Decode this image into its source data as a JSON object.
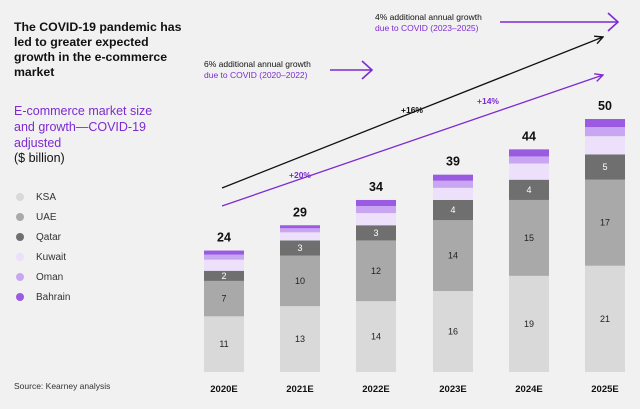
{
  "headline": "The COVID-19 pandemic has led to greater expected growth in the e-commerce market",
  "subtitle": "E-commerce market size and growth—COVID-19 adjusted",
  "units": "($ billion)",
  "source": "Source: Kearney analysis",
  "colors": {
    "accent": "#7d2bd1",
    "KSA": "#d9d9d9",
    "UAE": "#a9a9a9",
    "Qatar": "#6f6f6f",
    "Kuwait": "#ece0fb",
    "Oman": "#c9a6f2",
    "Bahrain": "#9a5ae2"
  },
  "annotations": {
    "growth_2020_2022": {
      "line1": "6% additional annual growth",
      "line2": "due to COVID (2020–2022)"
    },
    "growth_2023_2025": {
      "line1": "4% additional annual growth",
      "line2": "due to COVID (2023–2025)"
    },
    "cagr_black_1": "+16%",
    "cagr_purple_1": "+20%",
    "cagr_purple_2": "+14%"
  },
  "chart_data": {
    "type": "bar",
    "stacked": true,
    "categories": [
      "2020E",
      "2021E",
      "2022E",
      "2023E",
      "2024E",
      "2025E"
    ],
    "totals": [
      24,
      29,
      34,
      39,
      44,
      50
    ],
    "series": [
      {
        "name": "KSA",
        "values": [
          11,
          13,
          14,
          16,
          19,
          21
        ],
        "labels": [
          "11",
          "13",
          "14",
          "16",
          "19",
          "21"
        ]
      },
      {
        "name": "UAE",
        "values": [
          7,
          10,
          12,
          14,
          15,
          17
        ],
        "labels": [
          "7",
          "10",
          "12",
          "14",
          "15",
          "17"
        ]
      },
      {
        "name": "Qatar",
        "values": [
          2,
          3,
          3,
          4,
          4,
          5
        ],
        "labels": [
          "2",
          "3",
          "3",
          "4",
          "4",
          "5"
        ]
      },
      {
        "name": "Kuwait",
        "values": [
          2.2,
          1.6,
          2.4,
          2.4,
          3.2,
          3.6
        ],
        "labels": [
          "",
          "",
          "",
          "",
          "",
          ""
        ]
      },
      {
        "name": "Oman",
        "values": [
          1,
          0.8,
          1.4,
          1.4,
          1.4,
          1.8
        ],
        "labels": [
          "",
          "",
          "",
          "",
          "",
          ""
        ]
      },
      {
        "name": "Bahrain",
        "values": [
          0.8,
          0.6,
          1.2,
          1.2,
          1.4,
          1.6
        ],
        "labels": [
          "",
          "",
          "",
          "",
          "",
          ""
        ]
      }
    ],
    "legend": "left",
    "grid": false
  }
}
